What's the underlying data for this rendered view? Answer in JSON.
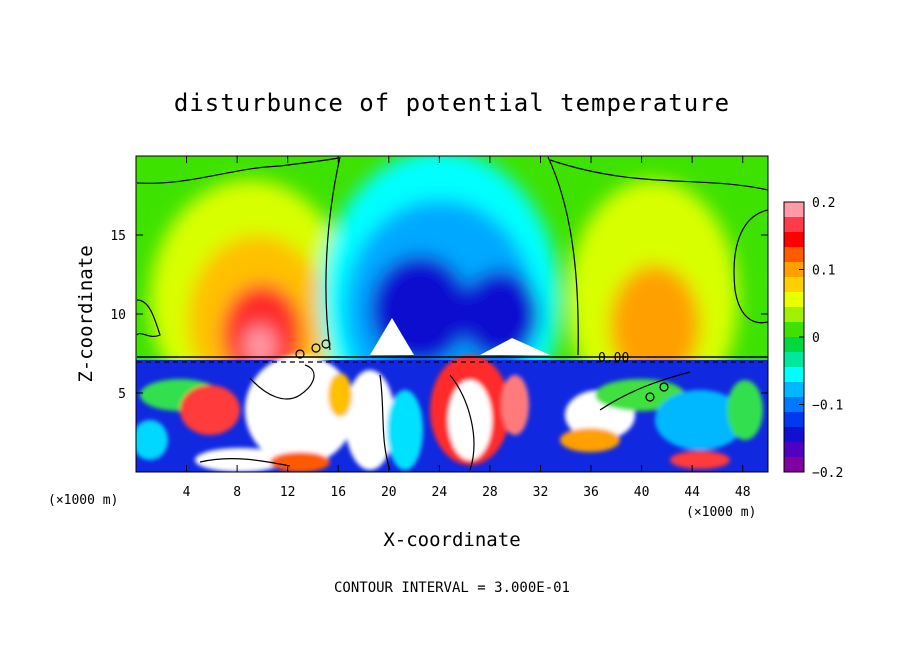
{
  "chart_data": {
    "type": "heatmap",
    "title": "disturbunce of potential temperature",
    "xlabel": "X-coordinate",
    "ylabel": "Z-coordinate",
    "x_unit": "(×1000 m)",
    "xlim": [
      0,
      50
    ],
    "ylim": [
      0,
      20
    ],
    "x_ticks": [
      4,
      8,
      12,
      16,
      20,
      24,
      28,
      32,
      36,
      40,
      44,
      48
    ],
    "y_ticks": [
      5,
      10,
      15
    ],
    "colorbar": {
      "range": [
        -0.2,
        0.2
      ],
      "tick_values": [
        0.2,
        0.1,
        0,
        -0.1,
        -0.2
      ],
      "tick_labels": [
        "0.2",
        "0.1",
        "0",
        "−0.1",
        "−0.2"
      ],
      "colors": [
        "#ff9aa6",
        "#ff3a4a",
        "#ff0000",
        "#ff5a00",
        "#ffa000",
        "#ffd000",
        "#e8ff00",
        "#a0f000",
        "#40e000",
        "#00d840",
        "#00e8a0",
        "#00ffff",
        "#00b8ff",
        "#0078ff",
        "#0038f0",
        "#1010d0",
        "#5000c0",
        "#8000a0"
      ]
    },
    "contour_interval_text": "CONTOUR INTERVAL = 3.000E-01",
    "contour_label": "0.00"
  }
}
